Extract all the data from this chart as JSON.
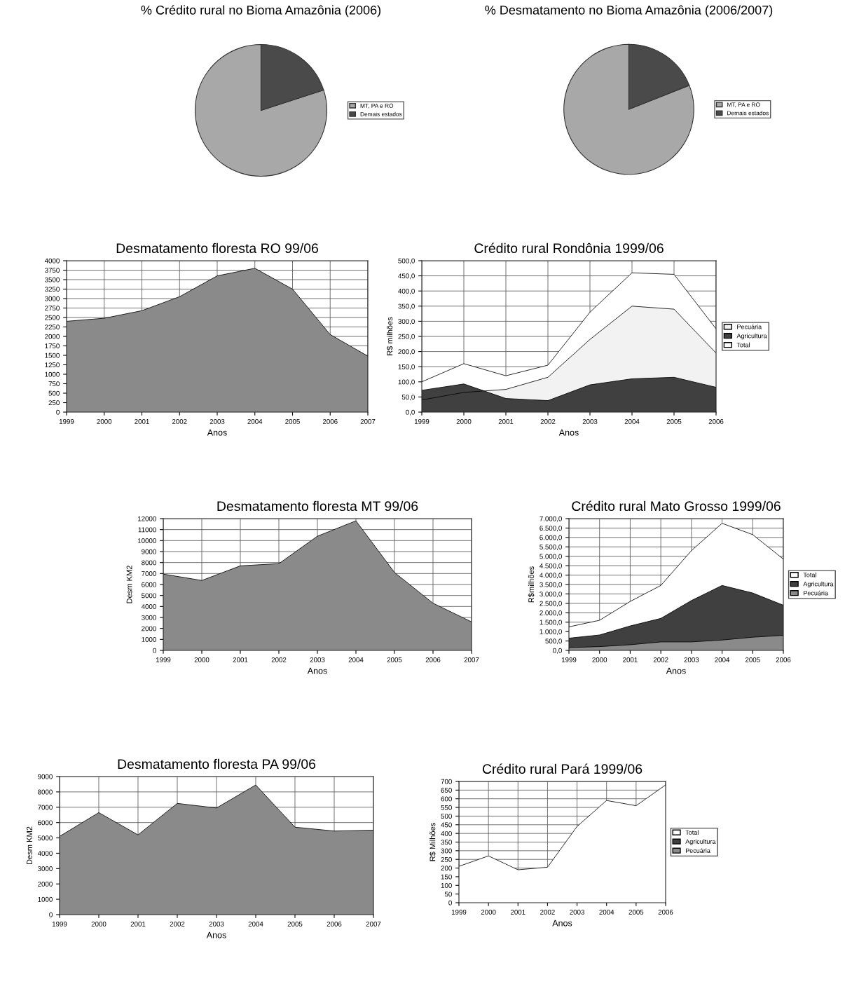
{
  "chart_data": [
    {
      "type": "pie",
      "title": "% Crédito rural no Bioma Amazônia (2006)",
      "categories": [
        "MT, PA e RO",
        "Demais estados"
      ],
      "values": [
        80,
        20
      ],
      "colors": [
        "#a8a8a8",
        "#4a4a4a"
      ],
      "legend": "right"
    },
    {
      "type": "pie",
      "title": "% Desmatamento no Bioma Amazônia (2006/2007)",
      "categories": [
        "MT, PA e RO",
        "Demais estados"
      ],
      "values": [
        81,
        19
      ],
      "colors": [
        "#a8a8a8",
        "#4a4a4a"
      ],
      "legend": "right"
    },
    {
      "type": "area",
      "title": "Desmatamento floresta RO 99/06",
      "xlabel": "Anos",
      "categories": [
        "1999",
        "2000",
        "2001",
        "2002",
        "2003",
        "2004",
        "2005",
        "2006",
        "2007"
      ],
      "series": [
        {
          "color": "#8a8a8a",
          "values": [
            2400,
            2480,
            2680,
            3050,
            3600,
            3800,
            3250,
            2050,
            1480
          ]
        }
      ],
      "ylim": [
        0,
        4000
      ],
      "yticks": [
        0,
        250,
        500,
        750,
        1000,
        1250,
        1500,
        1750,
        2000,
        2250,
        2500,
        2750,
        3000,
        3250,
        3500,
        3750,
        4000
      ],
      "grid": true
    },
    {
      "type": "area",
      "title": "Crédito rural Rondônia 1999/06",
      "xlabel": "Anos",
      "ylabel": "R$ milhões",
      "categories": [
        "1999",
        "2000",
        "2001",
        "2002",
        "2003",
        "2004",
        "2005",
        "2006"
      ],
      "series": [
        {
          "name": "Pecuária",
          "color": "#f2f2f2",
          "values": [
            40,
            65,
            75,
            115,
            240,
            350,
            340,
            195
          ]
        },
        {
          "name": "Agricultura",
          "color": "#404040",
          "values": [
            72,
            93,
            45,
            38,
            90,
            110,
            115,
            82
          ]
        },
        {
          "name": "Total",
          "color": "#ffffff",
          "values": [
            100,
            160,
            120,
            155,
            330,
            460,
            455,
            275
          ]
        }
      ],
      "ylim": [
        0,
        500
      ],
      "yticks": [
        {
          "value": 0,
          "label": "0,0"
        },
        {
          "value": 50,
          "label": "50,0"
        },
        {
          "value": 100,
          "label": "100,0"
        },
        {
          "value": 150,
          "label": "150,0"
        },
        {
          "value": 200,
          "label": "200,0"
        },
        {
          "value": 250,
          "label": "250,0"
        },
        {
          "value": 300,
          "label": "300,0"
        },
        {
          "value": 350,
          "label": "350,0"
        },
        {
          "value": 400,
          "label": "400,0"
        },
        {
          "value": 450,
          "label": "450,0"
        },
        {
          "value": 500,
          "label": "500,0"
        }
      ],
      "grid": true,
      "legend": "right"
    },
    {
      "type": "area",
      "title": "Desmatamento floresta MT 99/06",
      "xlabel": "Anos",
      "ylabel": "Desm KM2",
      "categories": [
        "1999",
        "2000",
        "2001",
        "2002",
        "2003",
        "2004",
        "2005",
        "2006",
        "2007"
      ],
      "series": [
        {
          "color": "#8a8a8a",
          "values": [
            6950,
            6370,
            7700,
            7900,
            10400,
            11800,
            7100,
            4300,
            2600
          ]
        }
      ],
      "ylim": [
        0,
        12000
      ],
      "yticks": [
        0,
        1000,
        2000,
        3000,
        4000,
        5000,
        6000,
        7000,
        8000,
        9000,
        10000,
        11000,
        12000
      ],
      "grid": true
    },
    {
      "type": "area",
      "title": "Crédito rural Mato Grosso 1999/06",
      "xlabel": "Anos",
      "ylabel": "R$milhões",
      "categories": [
        "1999",
        "2000",
        "2001",
        "2002",
        "2003",
        "2004",
        "2005",
        "2006"
      ],
      "series": [
        {
          "name": "Total",
          "color": "#ffffff",
          "values": [
            1250,
            1600,
            2600,
            3450,
            5300,
            6750,
            6150,
            4850
          ]
        },
        {
          "name": "Agricultura",
          "color": "#404040",
          "values": [
            650,
            820,
            1300,
            1700,
            2650,
            3450,
            3050,
            2400
          ]
        },
        {
          "name": "Pecuária",
          "color": "#8a8a8a",
          "values": [
            150,
            200,
            300,
            450,
            450,
            550,
            700,
            800
          ]
        }
      ],
      "ylim": [
        0,
        7000
      ],
      "yticks": [
        {
          "value": 0,
          "label": "0,0"
        },
        {
          "value": 500,
          "label": "500,0"
        },
        {
          "value": 1000,
          "label": "1.000,0"
        },
        {
          "value": 1500,
          "label": "1.500,0"
        },
        {
          "value": 2000,
          "label": "2.000,0"
        },
        {
          "value": 2500,
          "label": "2.500,0"
        },
        {
          "value": 3000,
          "label": "3.000,0"
        },
        {
          "value": 3500,
          "label": "3.500,0"
        },
        {
          "value": 4000,
          "label": "4.000,0"
        },
        {
          "value": 4500,
          "label": "4.500,0"
        },
        {
          "value": 5000,
          "label": "5.000,0"
        },
        {
          "value": 5500,
          "label": "5.500,0"
        },
        {
          "value": 6000,
          "label": "6.000,0"
        },
        {
          "value": 6500,
          "label": "6.500,0"
        },
        {
          "value": 7000,
          "label": "7.000,0"
        }
      ],
      "grid": true,
      "legend": "right"
    },
    {
      "type": "area",
      "title": "Desmatamento floresta PA 99/06",
      "xlabel": "Anos",
      "ylabel": "Desm KM2",
      "categories": [
        "1999",
        "2000",
        "2001",
        "2002",
        "2003",
        "2004",
        "2005",
        "2006",
        "2007"
      ],
      "series": [
        {
          "color": "#8a8a8a",
          "values": [
            5100,
            6650,
            5200,
            7250,
            6950,
            8450,
            5700,
            5450,
            5500
          ]
        }
      ],
      "ylim": [
        0,
        9000
      ],
      "yticks": [
        0,
        1000,
        2000,
        3000,
        4000,
        5000,
        6000,
        7000,
        8000,
        9000
      ],
      "grid": true
    },
    {
      "type": "area",
      "title": "Crédito rural Pará 1999/06",
      "xlabel": "Anos",
      "ylabel": "R$ Milhões",
      "categories": [
        "1999",
        "2000",
        "2001",
        "2002",
        "2003",
        "2004",
        "2005",
        "2006"
      ],
      "series": [
        {
          "name": "Total",
          "color": "#ffffff",
          "values": [
            210,
            270,
            190,
            205,
            440,
            590,
            560,
            680
          ]
        },
        {
          "name": "Agricultura",
          "color": "#404040",
          "values": [
            null,
            null,
            null,
            null,
            null,
            null,
            null,
            null
          ]
        },
        {
          "name": "Pecuária",
          "color": "#8a8a8a",
          "values": [
            null,
            null,
            null,
            null,
            null,
            null,
            null,
            null
          ]
        }
      ],
      "ylim": [
        0,
        700
      ],
      "yticks": [
        0,
        50,
        100,
        150,
        200,
        250,
        300,
        350,
        400,
        450,
        500,
        550,
        600,
        650,
        700
      ],
      "grid": true,
      "legend": "right"
    }
  ]
}
